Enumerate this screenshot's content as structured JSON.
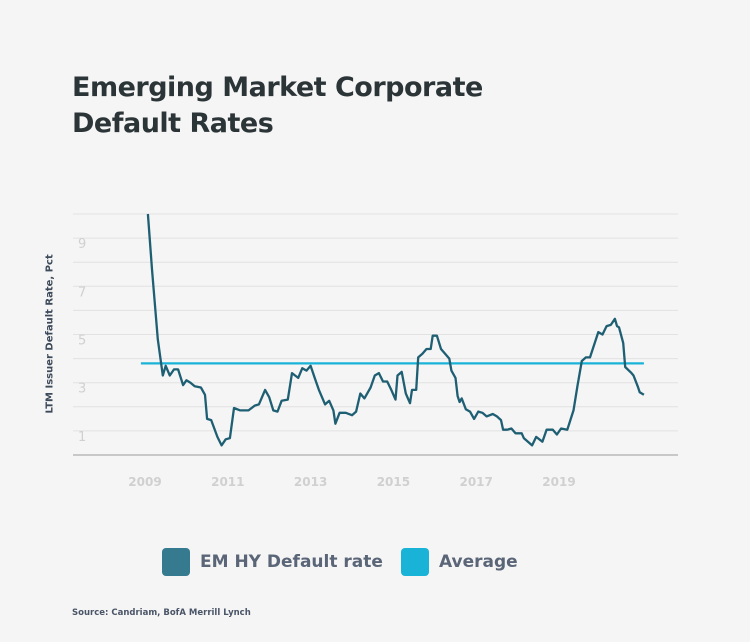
{
  "chart_data": {
    "type": "line",
    "title": [
      "Emerging Market Corporate",
      "Default Rates"
    ],
    "ylabel": "LTM Issuer Default Rate, Pct",
    "xlabel": "",
    "ylim": [
      0,
      10
    ],
    "xlim": [
      2008.8,
      2021.6
    ],
    "yticks": [
      1,
      3,
      5,
      7,
      9
    ],
    "xticks": [
      2009,
      2011,
      2013,
      2015,
      2017,
      2019
    ],
    "grid": true,
    "legend_position": "bottom",
    "series": [
      {
        "name": "EM HY Default rate",
        "color": "#1f5f73",
        "x": [
          2009.07,
          2009.17,
          2009.31,
          2009.43,
          2009.5,
          2009.6,
          2009.7,
          2009.8,
          2009.92,
          2010.0,
          2010.1,
          2010.2,
          2010.35,
          2010.45,
          2010.5,
          2010.6,
          2010.75,
          2010.85,
          2010.95,
          2011.05,
          2011.15,
          2011.3,
          2011.5,
          2011.65,
          2011.75,
          2011.9,
          2012.0,
          2012.1,
          2012.2,
          2012.3,
          2012.45,
          2012.55,
          2012.7,
          2012.8,
          2012.9,
          2013.0,
          2013.1,
          2013.2,
          2013.35,
          2013.45,
          2013.55,
          2013.6,
          2013.7,
          2013.85,
          2014.0,
          2014.1,
          2014.2,
          2014.3,
          2014.45,
          2014.55,
          2014.65,
          2014.75,
          2014.85,
          2014.95,
          2015.05,
          2015.1,
          2015.2,
          2015.3,
          2015.4,
          2015.45,
          2015.55,
          2015.6,
          2015.7,
          2015.8,
          2015.9,
          2015.95,
          2016.05,
          2016.15,
          2016.25,
          2016.35,
          2016.4,
          2016.5,
          2016.55,
          2016.6,
          2016.65,
          2016.75,
          2016.85,
          2016.95,
          2017.05,
          2017.15,
          2017.25,
          2017.4,
          2017.5,
          2017.6,
          2017.65,
          2017.75,
          2017.85,
          2017.95,
          2018.1,
          2018.15,
          2018.35,
          2018.45,
          2018.6,
          2018.7,
          2018.85,
          2018.95,
          2019.05,
          2019.2,
          2019.35,
          2019.45,
          2019.55,
          2019.65,
          2019.75,
          2019.95,
          2020.05,
          2020.15,
          2020.25,
          2020.35,
          2020.4,
          2020.45,
          2020.55,
          2020.6,
          2020.75,
          2020.8,
          2020.9,
          2020.95,
          2021.05
        ],
        "values": [
          10.0,
          7.7,
          4.8,
          3.3,
          3.7,
          3.3,
          3.55,
          3.55,
          2.9,
          3.1,
          3.0,
          2.85,
          2.8,
          2.5,
          1.5,
          1.45,
          0.75,
          0.4,
          0.65,
          0.7,
          1.95,
          1.85,
          1.85,
          2.05,
          2.1,
          2.7,
          2.4,
          1.85,
          1.8,
          2.25,
          2.3,
          3.4,
          3.2,
          3.6,
          3.5,
          3.7,
          3.2,
          2.7,
          2.1,
          2.25,
          1.85,
          1.3,
          1.75,
          1.75,
          1.65,
          1.8,
          2.55,
          2.35,
          2.8,
          3.3,
          3.4,
          3.05,
          3.05,
          2.7,
          2.3,
          3.3,
          3.45,
          2.55,
          2.15,
          2.7,
          2.7,
          4.05,
          4.2,
          4.4,
          4.4,
          4.95,
          4.95,
          4.4,
          4.2,
          4.0,
          3.5,
          3.2,
          2.45,
          2.2,
          2.35,
          1.9,
          1.8,
          1.5,
          1.8,
          1.75,
          1.6,
          1.7,
          1.6,
          1.45,
          1.05,
          1.05,
          1.1,
          0.9,
          0.9,
          0.7,
          0.4,
          0.75,
          0.55,
          1.05,
          1.05,
          0.85,
          1.1,
          1.05,
          1.85,
          2.9,
          3.9,
          4.05,
          4.05,
          5.1,
          5.0,
          5.35,
          5.4,
          5.65,
          5.35,
          5.3,
          4.65,
          3.65,
          3.4,
          3.3,
          2.85,
          2.6,
          2.5
        ]
      },
      {
        "name": "Average",
        "color": "#1ab3d8",
        "x": [
          2008.9,
          2021.05
        ],
        "values": [
          3.8,
          3.8
        ]
      }
    ]
  },
  "source": "Source: Candriam, BofA Merrill Lynch"
}
